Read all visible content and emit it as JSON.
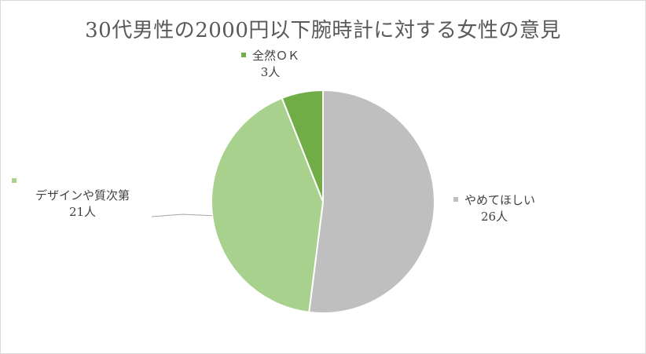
{
  "chart_data": {
    "type": "pie",
    "title": "30代男性の2000円以下腕時計に対する女性の意見",
    "slices": [
      {
        "label": "やめてほしい",
        "value": 26,
        "value_label": "26人",
        "color": "#bfbfbf"
      },
      {
        "label": "デザインや質次第",
        "value": 21,
        "value_label": "21人",
        "color": "#a9d18e"
      },
      {
        "label": "全然ＯＫ",
        "value": 3,
        "value_label": "3人",
        "color": "#70ad47"
      }
    ],
    "start_angle_deg": 0,
    "direction": "clockwise",
    "legend": "none",
    "data_labels": "outside"
  }
}
